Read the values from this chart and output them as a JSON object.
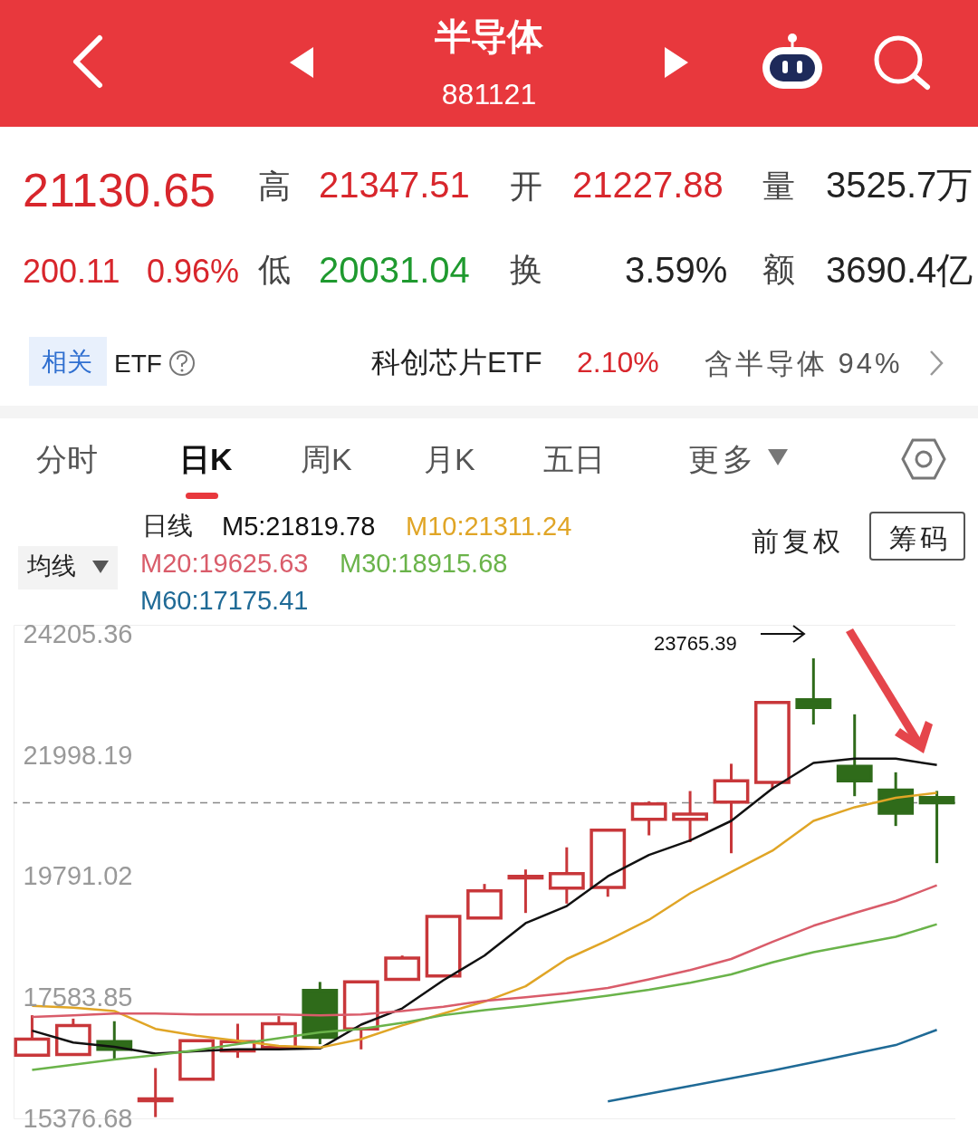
{
  "chart_data": {
    "type": "candlestick",
    "title": "半导体",
    "subtitle": "881121",
    "categories": [
      null,
      null,
      null,
      null,
      null,
      null,
      null,
      null,
      null,
      null,
      null,
      null,
      null,
      null,
      null,
      null,
      null,
      null,
      null,
      null,
      null,
      null,
      null
    ],
    "ohlc": [
      [
        16527,
        17257,
        16527,
        16822
      ],
      [
        16542,
        17195,
        16542,
        17071
      ],
      [
        16775,
        17148,
        16464,
        16635
      ],
      [
        15700,
        16293,
        15400,
        15730
      ],
      [
        16091,
        16791,
        16091,
        16791
      ],
      [
        16605,
        17102,
        16480,
        16775
      ],
      [
        16667,
        17241,
        16667,
        17102
      ],
      [
        17708,
        17864,
        16729,
        16853
      ],
      [
        17009,
        17864,
        16635,
        17864
      ],
      [
        17910,
        18346,
        17910,
        18299
      ],
      [
        17972,
        19060,
        17972,
        19060
      ],
      [
        19029,
        19651,
        19029,
        19527
      ],
      [
        19760,
        19915,
        19122,
        19791
      ],
      [
        19573,
        20319,
        19293,
        19838
      ],
      [
        19589,
        20630,
        19418,
        20630
      ],
      [
        20832,
        21159,
        20537,
        21112
      ],
      [
        20832,
        21345,
        20413,
        20926
      ],
      [
        21143,
        21843,
        20211,
        21532
      ],
      [
        21501,
        22962,
        21376,
        22962
      ],
      [
        23009,
        23765.39,
        22558,
        22869
      ],
      [
        21796,
        22744,
        21252,
        21532
      ],
      [
        21361,
        21687,
        20708,
        20941
      ],
      [
        21227.88,
        21347.51,
        20031.04,
        21130.65
      ]
    ],
    "colors": [
      "#c8373a",
      "#c8373a",
      "#2f6b1a",
      "#c8373a",
      "#c8373a",
      "#c8373a",
      "#c8373a",
      "#2f6b1a",
      "#c8373a",
      "#c8373a",
      "#c8373a",
      "#c8373a",
      "#c8373a",
      "#c8373a",
      "#c8373a",
      "#c8373a",
      "#c8373a",
      "#c8373a",
      "#c8373a",
      "#2f6b1a",
      "#2f6b1a",
      "#2f6b1a",
      "#2f6b1a"
    ],
    "series": [
      {
        "type": "line",
        "name": "M5:21819.78",
        "color": "#111111",
        "values": [
          16977,
          16760,
          16682,
          16558,
          16604,
          16636,
          16636,
          16651,
          17086,
          17382,
          17895,
          18345,
          18936,
          19247,
          19791,
          20180,
          20444,
          20801,
          21392,
          21858,
          21936,
          21936,
          21819.78
        ]
      },
      {
        "type": "line",
        "name": "M10:21311.24",
        "color": "#e0a526",
        "values": [
          17428,
          17397,
          17335,
          17008,
          16884,
          16791,
          16698,
          16667,
          16822,
          17071,
          17288,
          17506,
          17786,
          18283,
          18625,
          18998,
          19480,
          19869,
          20257,
          20801,
          21050,
          21221,
          21311.24
        ]
      },
      {
        "type": "line",
        "name": "M20:19625.63",
        "color": "#d95c6a",
        "values": [
          17226,
          17257,
          17288,
          17288,
          17273,
          17273,
          17273,
          17257,
          17273,
          17335,
          17413,
          17521,
          17584,
          17661,
          17755,
          17910,
          18081,
          18283,
          18594,
          18889,
          19122,
          19340,
          19625.63
        ]
      },
      {
        "type": "line",
        "name": "M30:18915.68",
        "color": "#6ab34a",
        "values": [
          16262,
          16356,
          16449,
          16527,
          16620,
          16729,
          16838,
          16946,
          17008,
          17117,
          17257,
          17350,
          17428,
          17521,
          17615,
          17723,
          17848,
          18003,
          18221,
          18407,
          18547,
          18687,
          18915.68
        ]
      },
      {
        "type": "line",
        "name": "M60:17175.41",
        "color": "#1f6a96",
        "values": [
          null,
          null,
          null,
          null,
          null,
          null,
          null,
          null,
          null,
          null,
          null,
          null,
          null,
          null,
          15687,
          15827,
          15967,
          16107,
          16247,
          16402,
          16558,
          16713,
          16990
        ]
      }
    ],
    "ylim": [
      15376.68,
      24376
    ],
    "yticks": [
      15376.68,
      17583.85,
      19791.02,
      21998.19,
      24205.36
    ],
    "tick_labels": "y",
    "legend": "top left",
    "ref_lines": [
      {
        "axis": "y",
        "value": 21130.65,
        "color": "#888888",
        "line_style": "dashed"
      }
    ],
    "annotations": [
      "21130.65",
      "高",
      "21347.51",
      "开",
      "21227.88",
      "量",
      "3525.7万",
      "200.11",
      "0.96%",
      "低",
      "20031.04",
      "换",
      "3.59%",
      "额",
      "3690.4亿",
      "相关",
      "ETF",
      "科创芯片ETF",
      "2.10%",
      "含半导体 94%",
      "分时",
      "日K",
      "周K",
      "月K",
      "五日",
      "更多",
      "日线",
      "前复权",
      "筹码",
      "均线",
      "23765.39"
    ]
  }
}
